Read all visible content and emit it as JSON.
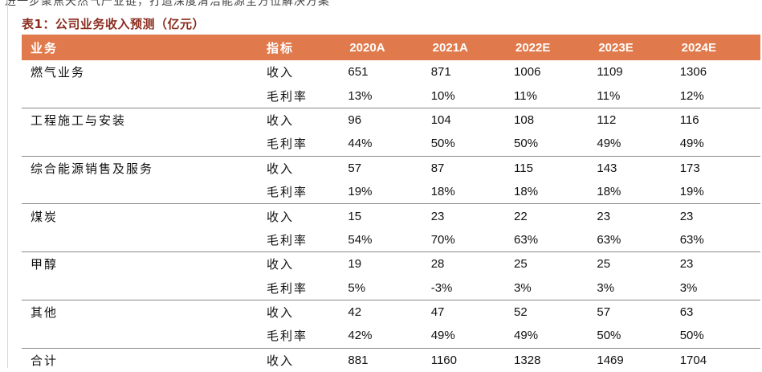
{
  "cut_text": "进一步聚焦天然气产业链，打造深度清洁能源全方位解决方案",
  "caption": "表1：公司业务收入预测（亿元）",
  "headers": {
    "business": "业务",
    "indicator": "指标",
    "years": [
      "2020A",
      "2021A",
      "2022E",
      "2023E",
      "2024E"
    ]
  },
  "rows": [
    {
      "business": "燃气业务",
      "indicator": "收入",
      "values": [
        "651",
        "871",
        "1006",
        "1109",
        "1306"
      ]
    },
    {
      "business": "",
      "indicator": "毛利率",
      "values": [
        "13%",
        "10%",
        "11%",
        "11%",
        "12%"
      ]
    },
    {
      "business": "工程施工与安装",
      "indicator": "收入",
      "values": [
        "96",
        "104",
        "108",
        "112",
        "116"
      ]
    },
    {
      "business": "",
      "indicator": "毛利率",
      "values": [
        "44%",
        "50%",
        "50%",
        "49%",
        "49%"
      ]
    },
    {
      "business": "综合能源销售及服务",
      "indicator": "收入",
      "values": [
        "57",
        "87",
        "115",
        "143",
        "173"
      ]
    },
    {
      "business": "",
      "indicator": "毛利率",
      "values": [
        "19%",
        "18%",
        "18%",
        "18%",
        "19%"
      ]
    },
    {
      "business": "煤炭",
      "indicator": "收入",
      "values": [
        "15",
        "23",
        "22",
        "23",
        "23"
      ]
    },
    {
      "business": "",
      "indicator": "毛利率",
      "values": [
        "54%",
        "70%",
        "63%",
        "63%",
        "63%"
      ]
    },
    {
      "business": "甲醇",
      "indicator": "收入",
      "values": [
        "19",
        "28",
        "25",
        "25",
        "23"
      ]
    },
    {
      "business": "",
      "indicator": "毛利率",
      "values": [
        "5%",
        "-3%",
        "3%",
        "3%",
        "3%"
      ]
    },
    {
      "business": "其他",
      "indicator": "收入",
      "values": [
        "42",
        "47",
        "52",
        "57",
        "63"
      ]
    },
    {
      "business": "",
      "indicator": "毛利率",
      "values": [
        "42%",
        "49%",
        "49%",
        "50%",
        "50%"
      ]
    },
    {
      "business": "合计",
      "indicator": "收入",
      "values": [
        "881",
        "1160",
        "1328",
        "1469",
        "1704"
      ]
    }
  ]
}
